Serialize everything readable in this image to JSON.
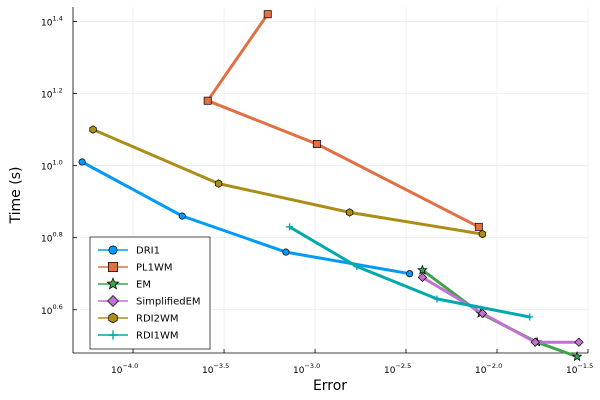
{
  "chart_data": {
    "type": "line",
    "title": "",
    "xlabel": "Error",
    "ylabel": "Time (s)",
    "xscale": "log10",
    "yscale": "log10",
    "xlim": [
      -4.33,
      -1.5
    ],
    "ylim": [
      0.48,
      1.44
    ],
    "x_ticks": [
      {
        "base": "10",
        "exp": "−4.0",
        "value": -4.0
      },
      {
        "base": "10",
        "exp": "−3.5",
        "value": -3.5
      },
      {
        "base": "10",
        "exp": "−3.0",
        "value": -3.0
      },
      {
        "base": "10",
        "exp": "−2.5",
        "value": -2.5
      },
      {
        "base": "10",
        "exp": "−2.0",
        "value": -2.0
      },
      {
        "base": "10",
        "exp": "−1.5",
        "value": -1.5
      }
    ],
    "y_ticks": [
      {
        "base": "10",
        "exp": "0.6",
        "value": 0.6
      },
      {
        "base": "10",
        "exp": "0.8",
        "value": 0.8
      },
      {
        "base": "10",
        "exp": "1.0",
        "value": 1.0
      },
      {
        "base": "10",
        "exp": "1.2",
        "value": 1.2
      },
      {
        "base": "10",
        "exp": "1.4",
        "value": 1.4
      }
    ],
    "grid": true,
    "legend_position": "bottom-left",
    "series": [
      {
        "name": "DRI1",
        "color": "#009af9",
        "marker": "circle",
        "x": [
          -4.28,
          -3.73,
          -3.16,
          -2.48
        ],
        "y": [
          1.01,
          0.86,
          0.76,
          0.7
        ]
      },
      {
        "name": "PL1WM",
        "color": "#e26f46",
        "marker": "square",
        "x": [
          -3.26,
          -3.59,
          -2.99,
          -2.1
        ],
        "y": [
          1.42,
          1.18,
          1.06,
          0.83
        ]
      },
      {
        "name": "EM",
        "color": "#3da44d",
        "marker": "star",
        "x": [
          -2.41,
          -2.09,
          -1.78,
          -1.56
        ],
        "y": [
          0.71,
          0.59,
          0.51,
          0.47
        ]
      },
      {
        "name": "SimplifiedEM",
        "color": "#c271d2",
        "marker": "diamond",
        "x": [
          -2.41,
          -2.08,
          -1.79,
          -1.55
        ],
        "y": [
          0.69,
          0.59,
          0.51,
          0.51
        ]
      },
      {
        "name": "RDI2WM",
        "color": "#ac8d18",
        "marker": "hexagon",
        "x": [
          -4.22,
          -3.53,
          -2.81,
          -2.08
        ],
        "y": [
          1.1,
          0.95,
          0.87,
          0.81
        ]
      },
      {
        "name": "RDI1WM",
        "color": "#00a9ad",
        "marker": "cross",
        "x": [
          -3.14,
          -2.77,
          -2.33,
          -1.82
        ],
        "y": [
          0.83,
          0.72,
          0.63,
          0.58
        ]
      }
    ]
  }
}
